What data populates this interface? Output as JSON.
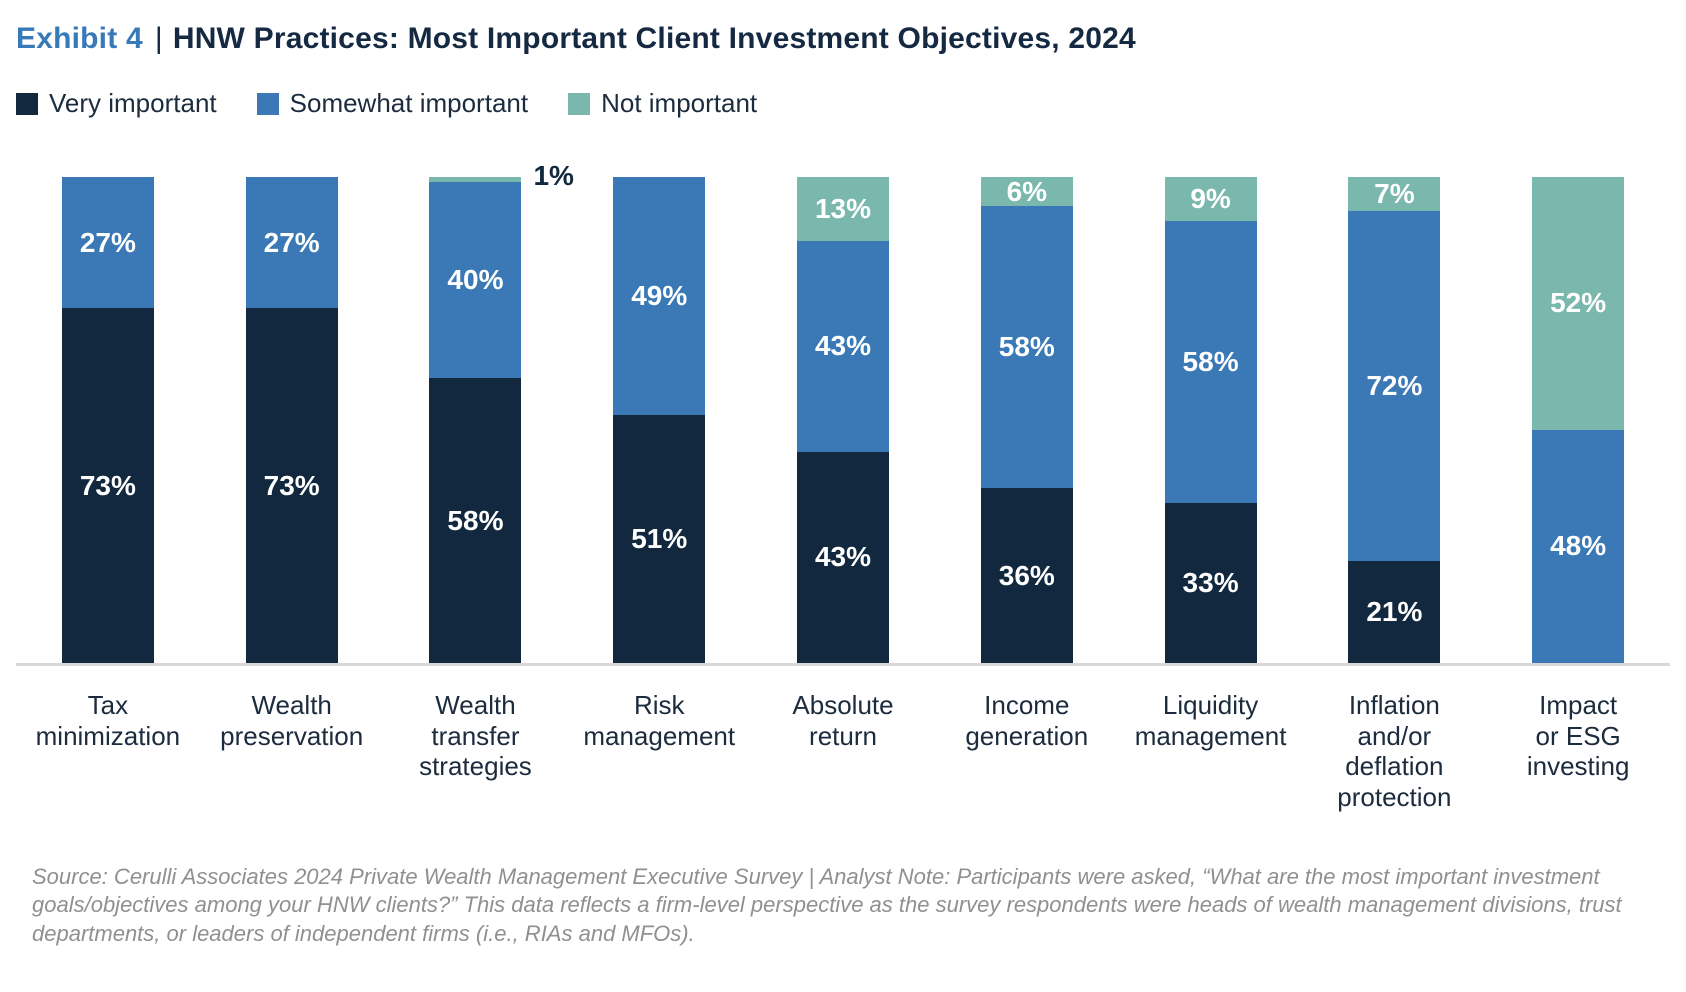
{
  "header": {
    "exhibit_label": "Exhibit 4",
    "separator": "|",
    "title": "HNW Practices: Most Important Client Investment Objectives, 2024"
  },
  "legend": [
    {
      "label": "Very important",
      "color": "#12283e"
    },
    {
      "label": "Somewhat important",
      "color": "#3a79b5"
    },
    {
      "label": "Not important",
      "color": "#7ab7ac"
    }
  ],
  "chart_data": {
    "type": "bar",
    "stacked": true,
    "orientation": "vertical",
    "title": "HNW Practices: Most Important Client Investment Objectives, 2024",
    "ylim": [
      0,
      100
    ],
    "grid": false,
    "legend_position": "top",
    "value_suffix": "%",
    "outside_label_threshold": 5,
    "categories": [
      "Tax minimization",
      "Wealth preservation",
      "Wealth transfer strategies",
      "Risk management",
      "Absolute return",
      "Income generation",
      "Liquidity management",
      "Inflation and/or deflation protection",
      "Impact or ESG investing"
    ],
    "category_lines": [
      [
        "Tax",
        "minimization"
      ],
      [
        "Wealth",
        "preservation"
      ],
      [
        "Wealth",
        "transfer",
        "strategies"
      ],
      [
        "Risk",
        "management"
      ],
      [
        "Absolute",
        "return"
      ],
      [
        "Income",
        "generation"
      ],
      [
        "Liquidity",
        "management"
      ],
      [
        "Inflation",
        "and/or",
        "deflation",
        "protection"
      ],
      [
        "Impact",
        "or ESG",
        "investing"
      ]
    ],
    "series": [
      {
        "name": "Very important",
        "color": "#12283e",
        "values": [
          73,
          73,
          58,
          51,
          43,
          36,
          33,
          21,
          0
        ]
      },
      {
        "name": "Somewhat important",
        "color": "#3a79b5",
        "values": [
          27,
          27,
          40,
          49,
          43,
          58,
          58,
          72,
          48
        ]
      },
      {
        "name": "Not important",
        "color": "#7ab7ac",
        "values": [
          0,
          0,
          1,
          0,
          13,
          6,
          9,
          7,
          52
        ]
      }
    ]
  },
  "footnote": "Source: Cerulli Associates 2024 Private Wealth Management Executive Survey | Analyst Note: Participants were asked, “What are the most important investment goals/objectives among your HNW clients?” This data reflects a firm-level perspective as the survey respondents were heads of wealth management divisions, trust departments, or leaders of independent firms (i.e., RIAs and MFOs)."
}
